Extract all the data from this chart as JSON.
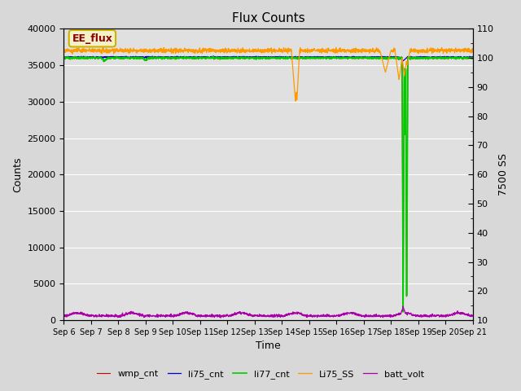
{
  "title": "Flux Counts",
  "xlabel": "Time",
  "ylabel_left": "Counts",
  "ylabel_right": "7500 SS",
  "xlim": [
    0,
    15
  ],
  "ylim_left": [
    0,
    40000
  ],
  "ylim_right": [
    10,
    110
  ],
  "yticks_left": [
    0,
    5000,
    10000,
    15000,
    20000,
    25000,
    30000,
    35000,
    40000
  ],
  "yticks_right": [
    10,
    20,
    30,
    40,
    50,
    60,
    70,
    80,
    90,
    100,
    110
  ],
  "xtick_labels": [
    "Sep 6",
    "Sep 7",
    "Sep 8",
    "Sep 9",
    "Sep 10",
    "Sep 11",
    "Sep 12",
    "Sep 13",
    "Sep 14",
    "Sep 15",
    "Sep 16",
    "Sep 17",
    "Sep 18",
    "Sep 19",
    "Sep 20",
    "Sep 21"
  ],
  "annotation_text": "EE_flux",
  "plot_bg_color": "#e0e0e0",
  "fig_bg_color": "#d8d8d8",
  "grid_color": "#ffffff",
  "legend_entries": [
    "wmp_cnt",
    "li75_cnt",
    "li77_cnt",
    "Li75_SS",
    "batt_volt"
  ],
  "legend_colors": [
    "#cc0000",
    "#0000cc",
    "#00cc00",
    "#ff9900",
    "#aa00aa"
  ],
  "title_fontsize": 11,
  "axis_fontsize": 9,
  "tick_fontsize": 8
}
